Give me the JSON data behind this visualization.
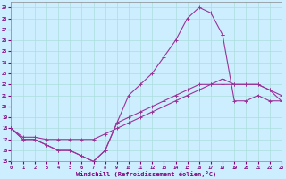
{
  "xlabel": "Windchill (Refroidissement éolien,°C)",
  "bg_color": "#cceeff",
  "line_color": "#993399",
  "grid_color": "#aadddd",
  "xlim": [
    0,
    23
  ],
  "ylim": [
    15,
    29.5
  ],
  "xticks": [
    0,
    1,
    2,
    3,
    4,
    5,
    6,
    7,
    8,
    9,
    10,
    11,
    12,
    13,
    14,
    15,
    16,
    17,
    18,
    19,
    20,
    21,
    22,
    23
  ],
  "yticks": [
    15,
    16,
    17,
    18,
    19,
    20,
    21,
    22,
    23,
    24,
    25,
    26,
    27,
    28,
    29
  ],
  "curve1_x": [
    0,
    1,
    2,
    3,
    4,
    5,
    6,
    7,
    8,
    9,
    10,
    11,
    12,
    13,
    14,
    15,
    16,
    17,
    18
  ],
  "curve1_y": [
    18,
    17,
    17,
    16.5,
    16,
    16,
    15.5,
    15,
    16,
    18.5,
    21,
    22,
    23,
    24.5,
    26,
    28,
    29,
    28.5,
    26.5
  ],
  "curve2_x": [
    18,
    19,
    20,
    21,
    22,
    23
  ],
  "curve2_y": [
    26.5,
    20.5,
    20.5,
    21,
    20.5,
    20.5
  ],
  "curve3_x": [
    0,
    1,
    2,
    3,
    4,
    5,
    6,
    7,
    8,
    9,
    10,
    11,
    12,
    13,
    14,
    15,
    16,
    17,
    18,
    19,
    20,
    21,
    22,
    23
  ],
  "curve3_y": [
    18,
    17.2,
    17.2,
    17,
    17,
    17,
    17,
    17,
    17.5,
    18,
    18.5,
    19,
    19.5,
    20,
    20.5,
    21,
    21.5,
    22,
    22.5,
    22,
    22,
    22,
    21.5,
    21
  ],
  "curve4_x": [
    0,
    1,
    2,
    3,
    4,
    5,
    6,
    7,
    8,
    9,
    10,
    11,
    12,
    13,
    14,
    15,
    16,
    17,
    18,
    19,
    20,
    21,
    22,
    23
  ],
  "curve4_y": [
    18,
    17,
    17,
    16.5,
    16,
    16,
    15.5,
    15,
    16,
    18.5,
    19,
    19.5,
    20,
    20.5,
    21,
    21.5,
    22,
    22,
    22,
    22,
    22,
    22,
    21.5,
    20.5
  ]
}
